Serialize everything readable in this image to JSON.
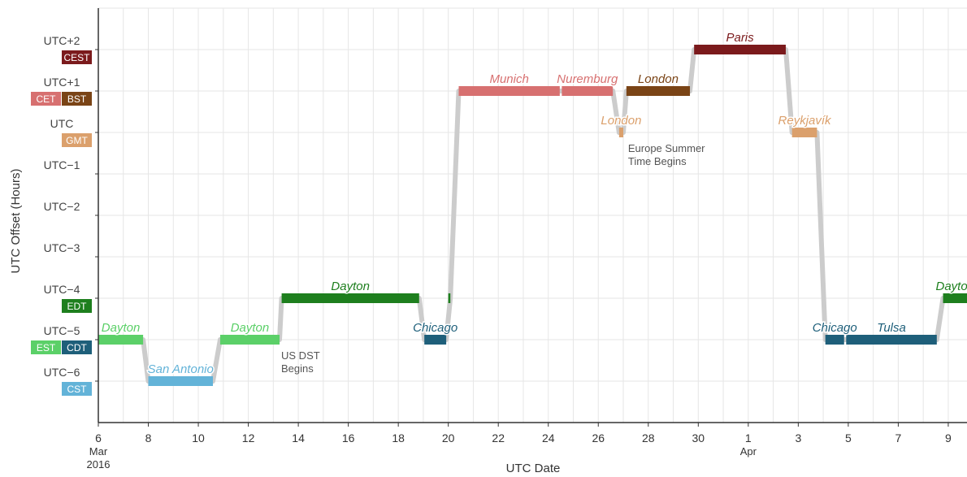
{
  "chart_data": {
    "type": "line",
    "title": "",
    "xlabel": "UTC Date",
    "ylabel": "UTC Offset (Hours)",
    "y_ticks": [
      {
        "offset": 2,
        "label": "UTC+2"
      },
      {
        "offset": 1,
        "label": "UTC+1"
      },
      {
        "offset": 0,
        "label": "UTC"
      },
      {
        "offset": -1,
        "label": "UTC−1"
      },
      {
        "offset": -2,
        "label": "UTC−2"
      },
      {
        "offset": -3,
        "label": "UTC−3"
      },
      {
        "offset": -4,
        "label": "UTC−4"
      },
      {
        "offset": -5,
        "label": "UTC−5"
      },
      {
        "offset": -6,
        "label": "UTC−6"
      }
    ],
    "zone_badges": [
      {
        "offset": 2,
        "label": "CEST",
        "color": "#7b1a1c"
      },
      {
        "offset": 1,
        "label": "CET",
        "color": "#d77070"
      },
      {
        "offset": 1,
        "label": "BST",
        "color": "#7a4416"
      },
      {
        "offset": 0,
        "label": "GMT",
        "color": "#dba06c"
      },
      {
        "offset": -4,
        "label": "EDT",
        "color": "#1e7f1e"
      },
      {
        "offset": -5,
        "label": "EST",
        "color": "#5bd068"
      },
      {
        "offset": -5,
        "label": "CDT",
        "color": "#1e5f7a"
      },
      {
        "offset": -6,
        "label": "CST",
        "color": "#63b3d8"
      }
    ],
    "x_ticks": [
      {
        "date": "2016-03-06",
        "label": "6",
        "sub": [
          "Mar",
          "2016"
        ]
      },
      {
        "date": "2016-03-08",
        "label": "8"
      },
      {
        "date": "2016-03-10",
        "label": "10"
      },
      {
        "date": "2016-03-12",
        "label": "12"
      },
      {
        "date": "2016-03-14",
        "label": "14"
      },
      {
        "date": "2016-03-16",
        "label": "16"
      },
      {
        "date": "2016-03-18",
        "label": "18"
      },
      {
        "date": "2016-03-20",
        "label": "20"
      },
      {
        "date": "2016-03-22",
        "label": "22"
      },
      {
        "date": "2016-03-24",
        "label": "24"
      },
      {
        "date": "2016-03-26",
        "label": "26"
      },
      {
        "date": "2016-03-28",
        "label": "28"
      },
      {
        "date": "2016-03-30",
        "label": "30"
      },
      {
        "date": "2016-04-01",
        "label": "1",
        "sub": [
          "Apr"
        ]
      },
      {
        "date": "2016-04-03",
        "label": "3"
      },
      {
        "date": "2016-04-05",
        "label": "5"
      },
      {
        "date": "2016-04-07",
        "label": "7"
      },
      {
        "date": "2016-04-09",
        "label": "9"
      }
    ],
    "xlim": [
      "2016-03-06",
      "2016-04-09T18:00"
    ],
    "ylim": [
      -7,
      3
    ],
    "grid": true,
    "track_color": "#cccccc",
    "track": [
      [
        "2016-03-06T00:00",
        -5
      ],
      [
        "2016-03-07T19:00",
        -5
      ],
      [
        "2016-03-08T00:00",
        -6
      ],
      [
        "2016-03-10T14:00",
        -6
      ],
      [
        "2016-03-10T21:00",
        -5
      ],
      [
        "2016-03-13T06:00",
        -5
      ],
      [
        "2016-03-13T08:00",
        -4
      ],
      [
        "2016-03-18T20:00",
        -4
      ],
      [
        "2016-03-19T01:00",
        -5
      ],
      [
        "2016-03-19T22:00",
        -5
      ],
      [
        "2016-03-20T02:00",
        -4
      ],
      [
        "2016-03-20T10:00",
        1
      ],
      [
        "2016-03-26T14:00",
        1
      ],
      [
        "2016-03-26T20:00",
        0
      ],
      [
        "2016-03-27T00:00",
        0
      ],
      [
        "2016-03-27T03:00",
        1
      ],
      [
        "2016-03-29T16:00",
        1
      ],
      [
        "2016-03-29T20:00",
        2
      ],
      [
        "2016-04-02T12:00",
        2
      ],
      [
        "2016-04-02T18:00",
        0
      ],
      [
        "2016-04-03T18:00",
        0
      ],
      [
        "2016-04-04T02:00",
        -5
      ],
      [
        "2016-04-08T13:00",
        -5
      ],
      [
        "2016-04-08T19:00",
        -4
      ],
      [
        "2016-04-09T18:00",
        -4
      ]
    ],
    "series": [
      {
        "city": "Dayton",
        "color": "#5bd068",
        "start": "2016-03-06T00:00",
        "end": "2016-03-07T19:00",
        "offset": -5,
        "label_pos": "above"
      },
      {
        "city": "San Antonio",
        "color": "#63b3d8",
        "start": "2016-03-08T00:00",
        "end": "2016-03-10T14:00",
        "offset": -6,
        "label_pos": "above"
      },
      {
        "city": "Dayton",
        "color": "#5bd068",
        "start": "2016-03-10T21:00",
        "end": "2016-03-13T06:00",
        "offset": -5,
        "label_pos": "above"
      },
      {
        "city": "Dayton",
        "color": "#1e7f1e",
        "start": "2016-03-13T08:00",
        "end": "2016-03-18T20:00",
        "offset": -4,
        "label_pos": "above"
      },
      {
        "city": "Chicago",
        "color": "#1e5f7a",
        "start": "2016-03-19T01:00",
        "end": "2016-03-19T22:00",
        "offset": -5,
        "label_pos": "above"
      },
      {
        "city": "",
        "color": "#1e7f1e",
        "start": "2016-03-20T00:00",
        "end": "2016-03-20T02:00",
        "offset": -4,
        "label_pos": "above"
      },
      {
        "city": "Munich",
        "color": "#d77070",
        "start": "2016-03-20T10:00",
        "end": "2016-03-24T11:00",
        "offset": 1,
        "label_pos": "above"
      },
      {
        "city": "Nuremburg",
        "color": "#d77070",
        "start": "2016-03-24T13:00",
        "end": "2016-03-26T14:00",
        "offset": 1,
        "label_pos": "above"
      },
      {
        "city": "London",
        "color": "#dba06c",
        "start": "2016-03-26T20:00",
        "end": "2016-03-27T00:00",
        "offset": 0,
        "label_pos": "above"
      },
      {
        "city": "London",
        "color": "#7a4416",
        "start": "2016-03-27T03:00",
        "end": "2016-03-29T16:00",
        "offset": 1,
        "label_pos": "above"
      },
      {
        "city": "Paris",
        "color": "#7b1a1c",
        "start": "2016-03-29T20:00",
        "end": "2016-04-02T12:00",
        "offset": 2,
        "label_pos": "above"
      },
      {
        "city": "Reykjavík",
        "color": "#dba06c",
        "start": "2016-04-02T18:00",
        "end": "2016-04-03T18:00",
        "offset": 0,
        "label_pos": "above"
      },
      {
        "city": "Chicago",
        "color": "#1e5f7a",
        "start": "2016-04-04T02:00",
        "end": "2016-04-04T20:00",
        "offset": -5,
        "label_pos": "above"
      },
      {
        "city": "Tulsa",
        "color": "#1e5f7a",
        "start": "2016-04-04T22:00",
        "end": "2016-04-08T13:00",
        "offset": -5,
        "label_pos": "above"
      },
      {
        "city": "Dayton",
        "color": "#1e7f1e",
        "start": "2016-04-08T19:00",
        "end": "2016-04-09T18:00",
        "offset": -4,
        "label_pos": "above"
      }
    ],
    "annotations": [
      {
        "date": "2016-03-13T06:00",
        "offset": -5,
        "lines": [
          "US DST",
          "Begins"
        ]
      },
      {
        "date": "2016-03-27T03:00",
        "offset": 0,
        "lines": [
          "Europe Summer",
          "Time Begins"
        ]
      }
    ]
  }
}
